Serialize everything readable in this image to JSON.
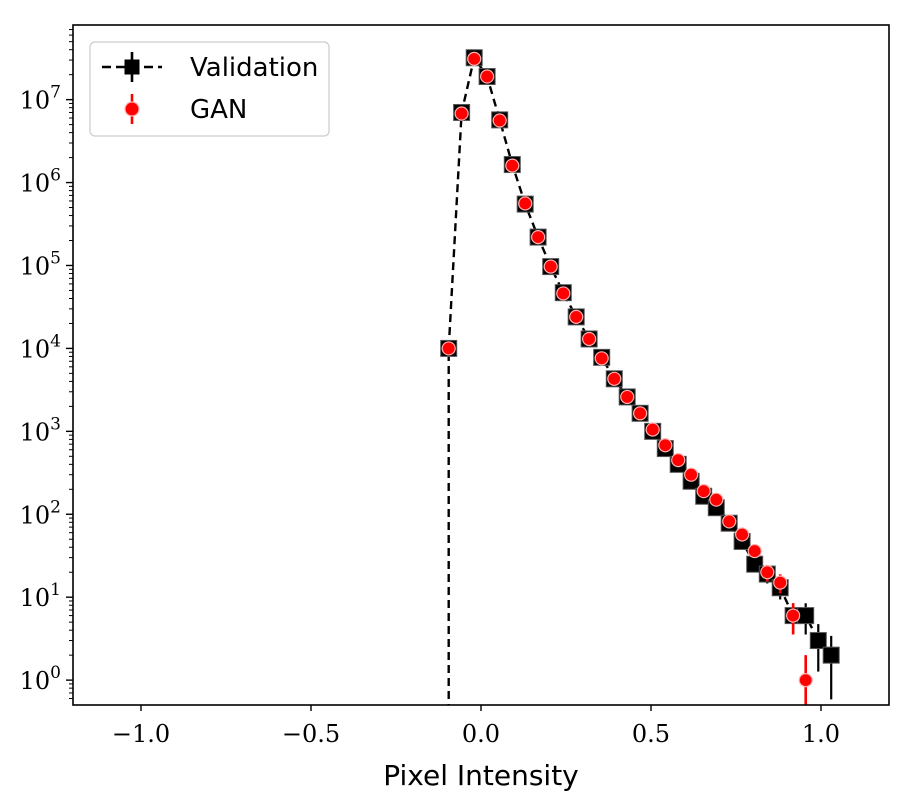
{
  "chart_data": {
    "type": "scatter",
    "xlabel": "Pixel Intensity",
    "ylabel": "",
    "xlim": [
      -1.2,
      1.2
    ],
    "ylim_log10": [
      -0.3,
      7.9
    ],
    "y_scale": "log",
    "x_ticks": [
      -1.0,
      -0.5,
      0.0,
      0.5,
      1.0
    ],
    "x_tick_labels": [
      "−1.0",
      "−0.5",
      "0.0",
      "0.5",
      "1.0"
    ],
    "y_ticks": [
      {
        "base": "10",
        "exp": "0",
        "value": 1
      },
      {
        "base": "10",
        "exp": "1",
        "value": 10
      },
      {
        "base": "10",
        "exp": "2",
        "value": 100
      },
      {
        "base": "10",
        "exp": "3",
        "value": 1000
      },
      {
        "base": "10",
        "exp": "4",
        "value": 10000
      },
      {
        "base": "10",
        "exp": "5",
        "value": 100000
      },
      {
        "base": "10",
        "exp": "6",
        "value": 1000000
      },
      {
        "base": "10",
        "exp": "7",
        "value": 10000000
      }
    ],
    "legend_position": "top-left",
    "series": [
      {
        "name": "Validation",
        "color": "#000000",
        "marker": "square",
        "line": "dashed",
        "x": [
          -0.095,
          -0.057,
          -0.02,
          0.018,
          0.055,
          0.092,
          0.13,
          0.168,
          0.205,
          0.242,
          0.28,
          0.318,
          0.355,
          0.392,
          0.43,
          0.468,
          0.505,
          0.542,
          0.58,
          0.618,
          0.655,
          0.692,
          0.73,
          0.768,
          0.805,
          0.842,
          0.88,
          0.918,
          0.955,
          0.992,
          1.03
        ],
        "y": [
          10000,
          7000000,
          32000000,
          19000000,
          5700000,
          1650000,
          550000,
          220000,
          97000,
          47000,
          24000,
          13000,
          7800,
          4300,
          2600,
          1650,
          1000,
          620,
          400,
          250,
          165,
          120,
          78,
          47,
          25,
          19,
          13,
          6,
          6,
          3,
          2
        ]
      },
      {
        "name": "GAN",
        "color": "#ff0000",
        "marker": "circle",
        "line": "none",
        "x": [
          -0.095,
          -0.057,
          -0.02,
          0.018,
          0.055,
          0.092,
          0.13,
          0.168,
          0.205,
          0.242,
          0.28,
          0.318,
          0.355,
          0.392,
          0.43,
          0.468,
          0.505,
          0.542,
          0.58,
          0.618,
          0.655,
          0.692,
          0.73,
          0.768,
          0.805,
          0.842,
          0.88,
          0.918,
          0.955
        ],
        "y": [
          10000,
          6800000,
          31000000,
          19000000,
          5600000,
          1600000,
          560000,
          220000,
          97000,
          46000,
          24000,
          13000,
          7600,
          4300,
          2600,
          1650,
          1050,
          680,
          450,
          300,
          190,
          150,
          82,
          57,
          36,
          20,
          15,
          6,
          1
        ]
      }
    ]
  }
}
